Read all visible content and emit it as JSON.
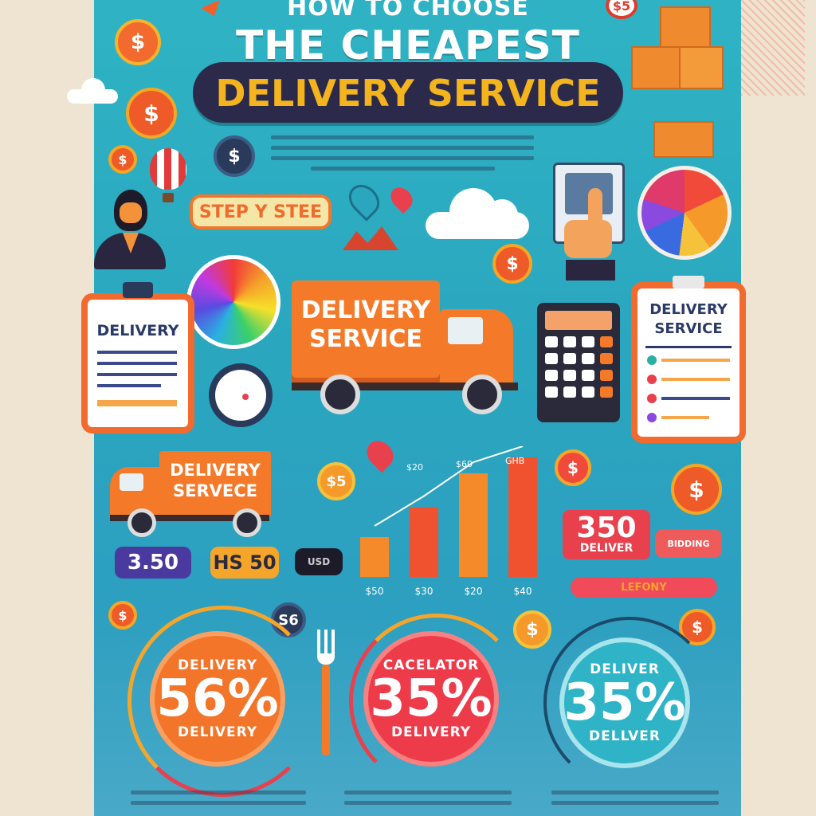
{
  "title": {
    "line1": "HOW TO CHOOSE",
    "line2": "THE CHEAPEST",
    "line3": "DELIVERY SERVICE"
  },
  "step_badge": "STEP Y STEE",
  "coin_symbol": "$",
  "coin_badge_top": "$5",
  "left_clipboard": {
    "label": "DELIVERY"
  },
  "truck_main": {
    "label_line1": "DELIVERY",
    "label_line2": "SERVICE"
  },
  "right_clipboard": {
    "label_line1": "DELIVERY",
    "label_line2": "SERVICE"
  },
  "truck_small": {
    "label_line1": "DELIVERY",
    "label_line2": "SERVECE"
  },
  "price_tags": [
    "3.50",
    "HS 50",
    "USD"
  ],
  "right_price": {
    "value": "350",
    "label": "DELIVER"
  },
  "right_tag_small": "BIDDING",
  "right_bar_label": "LEFONY",
  "bar_chart": {
    "values": [
      0.2,
      0.35,
      0.52,
      0.6
    ],
    "tick_labels": [
      "$50",
      "$30",
      "$20",
      "$40"
    ],
    "top_labels": [
      "$20",
      "$60",
      "GHB"
    ]
  },
  "chips": {
    "left_s6": "S6"
  },
  "rings": [
    {
      "top": "DELIVERY",
      "value": "56%",
      "bottom": "DELIVERY",
      "color": "#f2752a"
    },
    {
      "top": "CACELATOR",
      "value": "35%",
      "bottom": "DELIVERY",
      "color": "#ee3b4a"
    },
    {
      "top": "DELIVER",
      "value": "35%",
      "bottom": "DELLVER",
      "color": "#2fb3c6"
    }
  ],
  "colors": {
    "poster_bg": "#2aa6bf",
    "accent_orange": "#f26a2e",
    "accent_yellow": "#f4b41e",
    "banner_dark": "#2c2a4a"
  }
}
